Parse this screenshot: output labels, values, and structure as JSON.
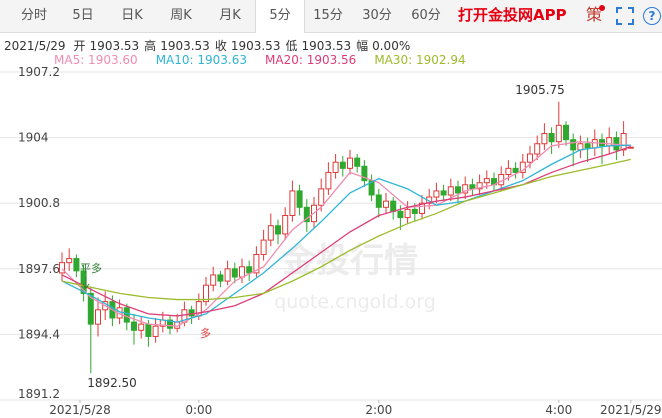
{
  "toolbar": {
    "tabs": [
      "分时",
      "5日",
      "日K",
      "周K",
      "月K",
      "5分",
      "15分",
      "30分",
      "60分"
    ],
    "selected": 5,
    "app_link": "打开金投网APP",
    "strategy_icon": "策",
    "help_icon": "?"
  },
  "chart_data": {
    "type": "candlestick",
    "info": {
      "date": "2021/5/29",
      "items": [
        {
          "label": "开",
          "value": "1903.53"
        },
        {
          "label": "高",
          "value": "1903.53"
        },
        {
          "label": "收",
          "value": "1903.53"
        },
        {
          "label": "低",
          "value": "1903.53"
        },
        {
          "label": "幅",
          "value": "0.00%"
        }
      ]
    },
    "ylim": [
      1891.2,
      1907.2
    ],
    "yticks": [
      1891.2,
      1894.4,
      1897.6,
      1900.8,
      1904,
      1907.2
    ],
    "grid": true,
    "up_color": "#e03a3a",
    "down_color": "#2ea82e",
    "xticks": [
      {
        "value": 2.5,
        "label": "2021/5/28"
      },
      {
        "value": 19,
        "label": "0:00"
      },
      {
        "value": 44,
        "label": "2:00"
      },
      {
        "value": 69,
        "label": "4:00"
      },
      {
        "value": 79,
        "label": "2021/5/29"
      }
    ],
    "candles": [
      [
        1897.4,
        1898.4,
        1897.0,
        1897.9
      ],
      [
        1897.9,
        1898.6,
        1897.5,
        1898.1
      ],
      [
        1898.1,
        1898.3,
        1897.2,
        1897.5
      ],
      [
        1897.5,
        1897.8,
        1896.0,
        1896.4
      ],
      [
        1896.4,
        1896.7,
        1892.5,
        1894.9
      ],
      [
        1894.9,
        1896.2,
        1894.3,
        1895.6
      ],
      [
        1895.6,
        1896.5,
        1895.1,
        1896.0
      ],
      [
        1896.0,
        1896.3,
        1894.8,
        1895.2
      ],
      [
        1895.2,
        1896.1,
        1894.9,
        1895.7
      ],
      [
        1895.7,
        1895.9,
        1894.6,
        1895.0
      ],
      [
        1895.0,
        1895.4,
        1893.9,
        1894.6
      ],
      [
        1894.6,
        1895.3,
        1894.2,
        1894.9
      ],
      [
        1894.9,
        1895.1,
        1893.8,
        1894.3
      ],
      [
        1894.3,
        1895.2,
        1894.0,
        1894.8
      ],
      [
        1894.8,
        1895.5,
        1894.5,
        1895.1
      ],
      [
        1895.1,
        1895.3,
        1894.4,
        1894.7
      ],
      [
        1894.7,
        1895.4,
        1894.5,
        1895.0
      ],
      [
        1895.0,
        1896.0,
        1894.8,
        1895.6
      ],
      [
        1895.6,
        1895.8,
        1894.9,
        1895.3
      ],
      [
        1895.3,
        1896.4,
        1895.1,
        1896.0
      ],
      [
        1896.0,
        1897.2,
        1895.8,
        1896.8
      ],
      [
        1896.8,
        1897.7,
        1896.5,
        1897.3
      ],
      [
        1897.3,
        1897.5,
        1896.7,
        1897.0
      ],
      [
        1897.0,
        1898.0,
        1896.8,
        1897.6
      ],
      [
        1897.6,
        1897.9,
        1896.9,
        1897.2
      ],
      [
        1897.2,
        1898.1,
        1896.9,
        1897.7
      ],
      [
        1897.7,
        1898.0,
        1897.0,
        1897.4
      ],
      [
        1897.4,
        1898.7,
        1897.2,
        1898.3
      ],
      [
        1898.3,
        1899.5,
        1898.0,
        1899.0
      ],
      [
        1899.0,
        1900.3,
        1898.7,
        1899.7
      ],
      [
        1899.7,
        1900.0,
        1898.8,
        1899.3
      ],
      [
        1899.3,
        1900.6,
        1899.0,
        1900.2
      ],
      [
        1900.2,
        1901.9,
        1899.9,
        1901.4
      ],
      [
        1901.4,
        1901.7,
        1900.2,
        1900.6
      ],
      [
        1900.6,
        1901.0,
        1899.4,
        1899.9
      ],
      [
        1899.9,
        1901.1,
        1899.6,
        1900.7
      ],
      [
        1900.7,
        1902.0,
        1900.4,
        1901.5
      ],
      [
        1901.5,
        1902.8,
        1901.2,
        1902.3
      ],
      [
        1902.3,
        1903.2,
        1902.0,
        1902.8
      ],
      [
        1902.8,
        1903.1,
        1902.1,
        1902.5
      ],
      [
        1902.5,
        1903.4,
        1902.2,
        1903.0
      ],
      [
        1903.0,
        1903.2,
        1902.3,
        1902.6
      ],
      [
        1902.6,
        1902.9,
        1901.6,
        1901.9
      ],
      [
        1901.9,
        1902.2,
        1900.9,
        1901.2
      ],
      [
        1901.2,
        1901.5,
        1900.1,
        1900.6
      ],
      [
        1900.6,
        1901.3,
        1900.3,
        1900.9
      ],
      [
        1900.9,
        1901.1,
        1900.0,
        1900.4
      ],
      [
        1900.4,
        1900.7,
        1899.5,
        1900.1
      ],
      [
        1900.1,
        1900.9,
        1899.8,
        1900.5
      ],
      [
        1900.5,
        1900.8,
        1899.9,
        1900.3
      ],
      [
        1900.3,
        1901.2,
        1900.0,
        1900.8
      ],
      [
        1900.8,
        1901.5,
        1900.5,
        1901.1
      ],
      [
        1901.1,
        1901.8,
        1900.8,
        1901.4
      ],
      [
        1901.4,
        1901.7,
        1900.9,
        1901.2
      ],
      [
        1901.2,
        1902.0,
        1900.9,
        1901.6
      ],
      [
        1901.6,
        1901.9,
        1900.8,
        1901.3
      ],
      [
        1901.3,
        1902.1,
        1901.0,
        1901.7
      ],
      [
        1901.7,
        1902.0,
        1901.2,
        1901.5
      ],
      [
        1901.5,
        1902.2,
        1901.2,
        1901.8
      ],
      [
        1901.8,
        1902.4,
        1901.5,
        1902.0
      ],
      [
        1902.0,
        1902.3,
        1901.4,
        1901.7
      ],
      [
        1901.7,
        1902.6,
        1901.4,
        1902.2
      ],
      [
        1902.2,
        1902.9,
        1901.9,
        1902.5
      ],
      [
        1902.5,
        1902.8,
        1902.0,
        1902.3
      ],
      [
        1902.3,
        1903.2,
        1902.0,
        1902.8
      ],
      [
        1902.8,
        1903.6,
        1902.5,
        1903.2
      ],
      [
        1903.2,
        1904.1,
        1902.9,
        1903.7
      ],
      [
        1903.7,
        1904.7,
        1903.4,
        1904.2
      ],
      [
        1904.2,
        1904.5,
        1903.2,
        1903.8
      ],
      [
        1903.8,
        1905.75,
        1903.5,
        1904.6
      ],
      [
        1904.6,
        1904.8,
        1903.6,
        1903.9
      ],
      [
        1903.9,
        1904.2,
        1902.6,
        1903.4
      ],
      [
        1903.4,
        1904.1,
        1903.0,
        1903.7
      ],
      [
        1903.7,
        1904.0,
        1902.8,
        1903.5
      ],
      [
        1903.5,
        1904.4,
        1903.1,
        1903.9
      ],
      [
        1903.9,
        1904.2,
        1902.7,
        1903.6
      ],
      [
        1903.6,
        1904.5,
        1903.2,
        1904.0
      ],
      [
        1904.0,
        1904.3,
        1902.9,
        1903.4
      ],
      [
        1903.4,
        1904.8,
        1903.1,
        1904.2
      ],
      [
        1903.53,
        1903.53,
        1903.53,
        1903.53
      ]
    ],
    "x": [
      0,
      4,
      8,
      12,
      16,
      20,
      24,
      28,
      32,
      36,
      40,
      44,
      48,
      52,
      56,
      60,
      64,
      68,
      72,
      76,
      79
    ],
    "series": [
      {
        "name": "MA5: 1903.60",
        "color": "#f08cb0",
        "values": [
          1897.6,
          1896.2,
          1895.4,
          1894.9,
          1894.8,
          1895.6,
          1897.0,
          1897.7,
          1899.5,
          1900.6,
          1902.3,
          1901.8,
          1900.6,
          1900.7,
          1901.4,
          1901.7,
          1902.4,
          1903.6,
          1903.8,
          1903.7,
          1903.6
        ]
      },
      {
        "name": "MA10: 1903.63",
        "color": "#2fb5d6",
        "values": [
          1897.0,
          1896.3,
          1895.5,
          1895.2,
          1895.0,
          1895.4,
          1896.4,
          1897.4,
          1898.6,
          1899.9,
          1901.3,
          1902.0,
          1901.5,
          1900.7,
          1900.9,
          1901.4,
          1901.9,
          1902.7,
          1903.4,
          1903.6,
          1903.63
        ]
      },
      {
        "name": "MA20: 1903.56",
        "color": "#dc3d78",
        "values": [
          1897.3,
          1896.6,
          1895.9,
          1895.4,
          1895.3,
          1895.5,
          1895.8,
          1896.4,
          1897.4,
          1898.4,
          1899.4,
          1900.2,
          1900.6,
          1900.9,
          1901.1,
          1901.4,
          1901.7,
          1902.3,
          1902.8,
          1903.2,
          1903.56
        ]
      },
      {
        "name": "MA30: 1902.94",
        "color": "#9cbc2c",
        "values": [
          1897.0,
          1896.7,
          1896.4,
          1896.2,
          1896.1,
          1896.1,
          1896.2,
          1896.4,
          1897.0,
          1897.7,
          1898.5,
          1899.2,
          1899.8,
          1900.3,
          1900.9,
          1901.3,
          1901.7,
          1902.1,
          1902.4,
          1902.7,
          1902.94
        ]
      }
    ],
    "high_label": "1905.75",
    "low_label": "1892.50",
    "signals": [
      {
        "label": "平多",
        "color": "#2e7d32"
      },
      {
        "label": "多",
        "color": "#e03a3a"
      }
    ],
    "watermark": {
      "title": "金投行情",
      "url": "quote.cngold.org"
    }
  }
}
